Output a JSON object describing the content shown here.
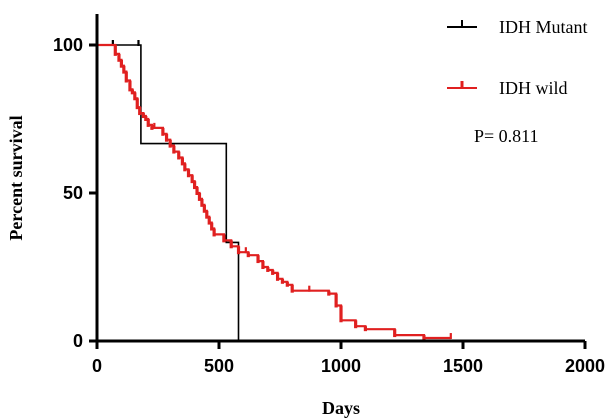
{
  "chart_data": {
    "type": "line",
    "title": "",
    "xlabel": "Days",
    "ylabel": "Percent survival",
    "xlim": [
      0,
      2000
    ],
    "ylim": [
      0,
      100
    ],
    "x_ticks": [
      0,
      500,
      1000,
      1500,
      2000
    ],
    "y_ticks": [
      0,
      50,
      100
    ],
    "x_tick_labels": [
      "0",
      "500",
      "1000",
      "1500",
      "2000"
    ],
    "y_tick_labels": [
      "0",
      "50",
      "100"
    ],
    "grid": false,
    "legend_position": "top-right",
    "annotation": "P= 0.811",
    "series": [
      {
        "name": "IDH Mutant",
        "color": "#000000",
        "steps": [
          [
            0,
            100
          ],
          [
            180,
            100
          ],
          [
            180,
            66.7
          ],
          [
            530,
            66.7
          ],
          [
            530,
            33.3
          ],
          [
            580,
            33.3
          ],
          [
            580,
            0
          ]
        ],
        "censored": [
          [
            65,
            100
          ],
          [
            170,
            100
          ]
        ]
      },
      {
        "name": "IDH wild",
        "color": "#e02020",
        "steps": [
          [
            0,
            100
          ],
          [
            75,
            100
          ],
          [
            75,
            97
          ],
          [
            90,
            97
          ],
          [
            90,
            95
          ],
          [
            100,
            95
          ],
          [
            100,
            93
          ],
          [
            110,
            93
          ],
          [
            110,
            91
          ],
          [
            120,
            91
          ],
          [
            120,
            88
          ],
          [
            135,
            88
          ],
          [
            135,
            85
          ],
          [
            145,
            85
          ],
          [
            145,
            84
          ],
          [
            155,
            84
          ],
          [
            155,
            82
          ],
          [
            165,
            82
          ],
          [
            165,
            79
          ],
          [
            175,
            79
          ],
          [
            175,
            77
          ],
          [
            190,
            77
          ],
          [
            190,
            76
          ],
          [
            200,
            76
          ],
          [
            200,
            75
          ],
          [
            210,
            75
          ],
          [
            210,
            73
          ],
          [
            225,
            73
          ],
          [
            225,
            72
          ],
          [
            270,
            72
          ],
          [
            270,
            70
          ],
          [
            285,
            70
          ],
          [
            285,
            68
          ],
          [
            300,
            68
          ],
          [
            300,
            66
          ],
          [
            315,
            66
          ],
          [
            315,
            64
          ],
          [
            335,
            64
          ],
          [
            335,
            62
          ],
          [
            350,
            62
          ],
          [
            350,
            60
          ],
          [
            360,
            60
          ],
          [
            360,
            58
          ],
          [
            375,
            58
          ],
          [
            375,
            56
          ],
          [
            390,
            56
          ],
          [
            390,
            54
          ],
          [
            400,
            54
          ],
          [
            400,
            52
          ],
          [
            410,
            52
          ],
          [
            410,
            50
          ],
          [
            420,
            50
          ],
          [
            420,
            48
          ],
          [
            430,
            48
          ],
          [
            430,
            46
          ],
          [
            440,
            46
          ],
          [
            440,
            44
          ],
          [
            450,
            44
          ],
          [
            450,
            42
          ],
          [
            460,
            42
          ],
          [
            460,
            40
          ],
          [
            470,
            40
          ],
          [
            470,
            38
          ],
          [
            480,
            38
          ],
          [
            480,
            36
          ],
          [
            520,
            36
          ],
          [
            520,
            34
          ],
          [
            550,
            34
          ],
          [
            550,
            32
          ],
          [
            580,
            32
          ],
          [
            580,
            30
          ],
          [
            620,
            30
          ],
          [
            620,
            29
          ],
          [
            660,
            29
          ],
          [
            660,
            27
          ],
          [
            680,
            27
          ],
          [
            680,
            25
          ],
          [
            700,
            25
          ],
          [
            700,
            24
          ],
          [
            720,
            24
          ],
          [
            720,
            23
          ],
          [
            740,
            23
          ],
          [
            740,
            21
          ],
          [
            760,
            21
          ],
          [
            760,
            20
          ],
          [
            780,
            20
          ],
          [
            780,
            19
          ],
          [
            800,
            19
          ],
          [
            800,
            17
          ],
          [
            950,
            17
          ],
          [
            950,
            16
          ],
          [
            980,
            16
          ],
          [
            980,
            12
          ],
          [
            1000,
            12
          ],
          [
            1000,
            7
          ],
          [
            1060,
            7
          ],
          [
            1060,
            5
          ],
          [
            1100,
            5
          ],
          [
            1100,
            4
          ],
          [
            1220,
            4
          ],
          [
            1220,
            2
          ],
          [
            1340,
            2
          ],
          [
            1340,
            1
          ],
          [
            1450,
            1
          ]
        ],
        "censored": [
          [
            235,
            72
          ],
          [
            610,
            30
          ],
          [
            870,
            17
          ],
          [
            1450,
            1
          ]
        ]
      }
    ]
  }
}
